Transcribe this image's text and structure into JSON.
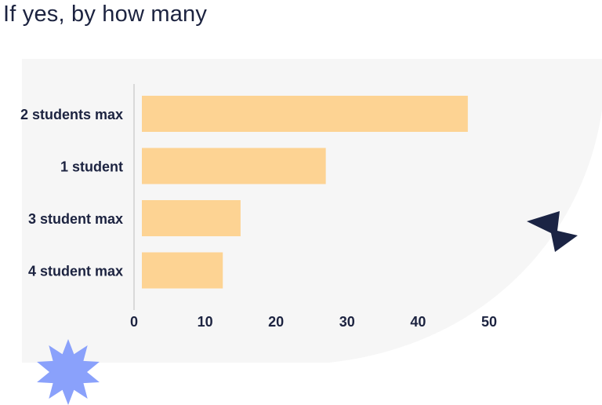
{
  "page": {
    "title": "If yes, by how many"
  },
  "colors": {
    "bar": "#fdd393",
    "panel": "#f6f6f6",
    "text": "#1c2340",
    "axis": "#cfcfcf",
    "star": "#8aa1fb",
    "arrow": "#1b2444"
  },
  "chart_data": {
    "type": "bar",
    "orientation": "horizontal",
    "categories": [
      "2 students max",
      "1 student",
      "3 student max",
      "4 student max"
    ],
    "values": [
      47,
      27,
      15,
      12.5
    ],
    "xlim": [
      0,
      50
    ],
    "xticks": [
      0,
      10,
      20,
      30,
      40,
      50
    ],
    "title": "If yes, by how many",
    "xlabel": "",
    "ylabel": "",
    "grid": false
  },
  "decorations": {
    "star": "star-burst-icon",
    "arrow": "lightning-arrow-icon"
  }
}
